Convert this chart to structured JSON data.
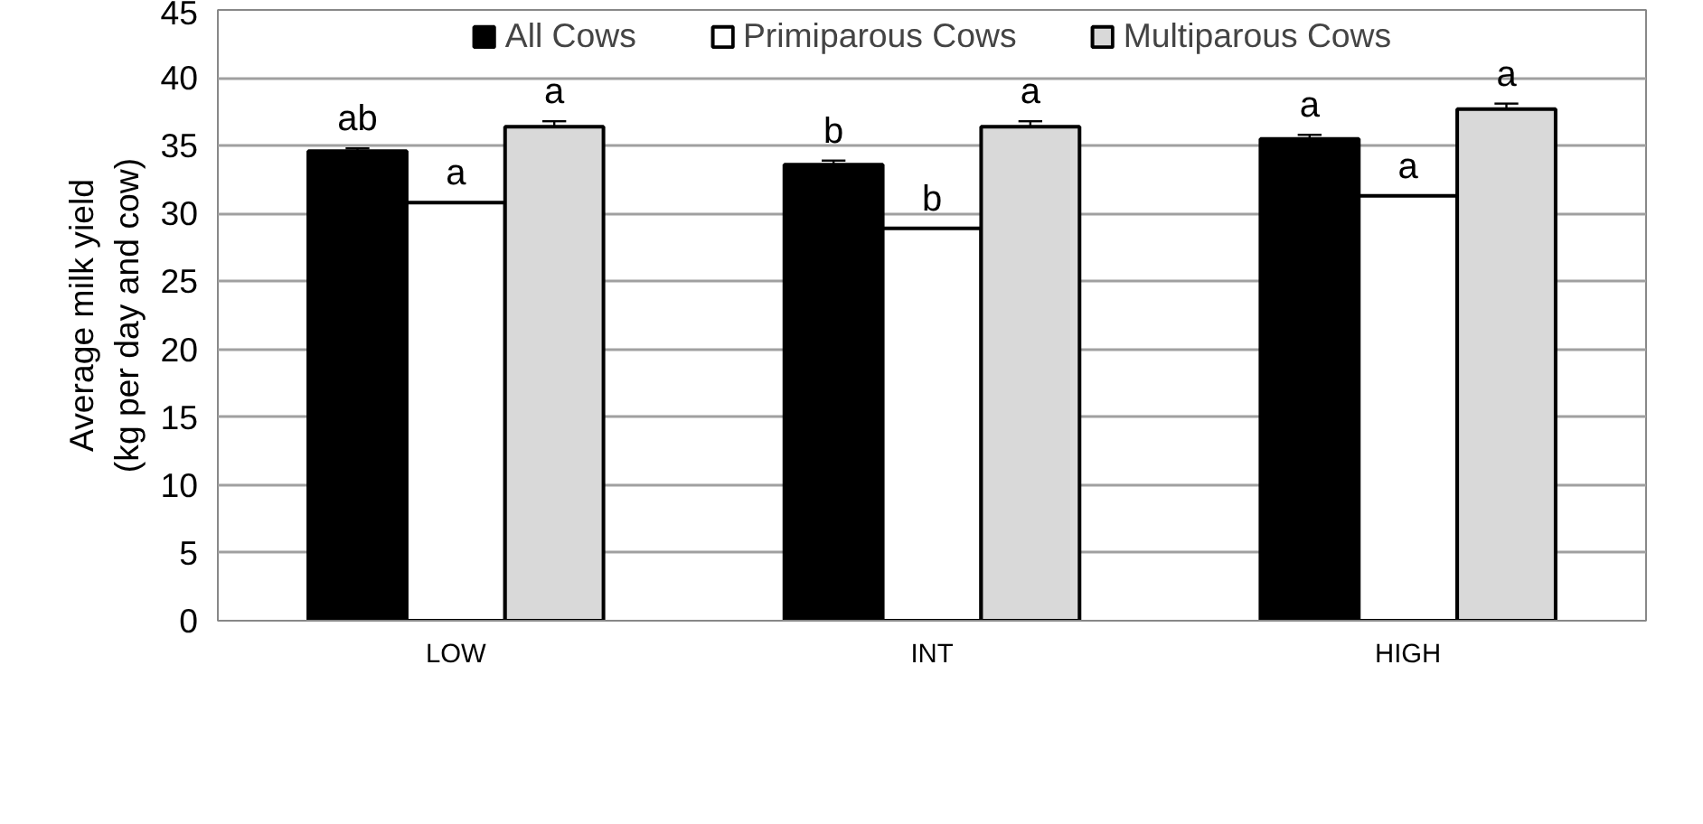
{
  "chart_data": {
    "type": "bar",
    "ylabel": "Average milk yield\n(kg per day and cow)",
    "categories": [
      "LOW",
      "INT",
      "HIGH"
    ],
    "series": [
      {
        "name": "All Cows",
        "color": "#000000",
        "values": [
          34.6,
          33.6,
          35.5
        ],
        "errors": [
          0.2,
          0.3,
          0.3
        ],
        "value_labels": [
          "ab",
          "b",
          "a"
        ]
      },
      {
        "name": "Primiparous Cows",
        "color": "#ffffff",
        "values": [
          30.8,
          28.9,
          31.3
        ],
        "value_labels": [
          "a",
          "b",
          "a"
        ]
      },
      {
        "name": "Multiparous Cows",
        "color": "#d9d9d9",
        "values": [
          36.4,
          36.4,
          37.7
        ],
        "errors": [
          0.4,
          0.4,
          0.4
        ],
        "value_labels": [
          "a",
          "a",
          "a"
        ]
      }
    ],
    "ylim": [
      0,
      45
    ],
    "yticks": [
      0,
      5,
      10,
      15,
      20,
      25,
      30,
      35,
      40,
      45
    ],
    "grid": "y",
    "legend": "top"
  }
}
